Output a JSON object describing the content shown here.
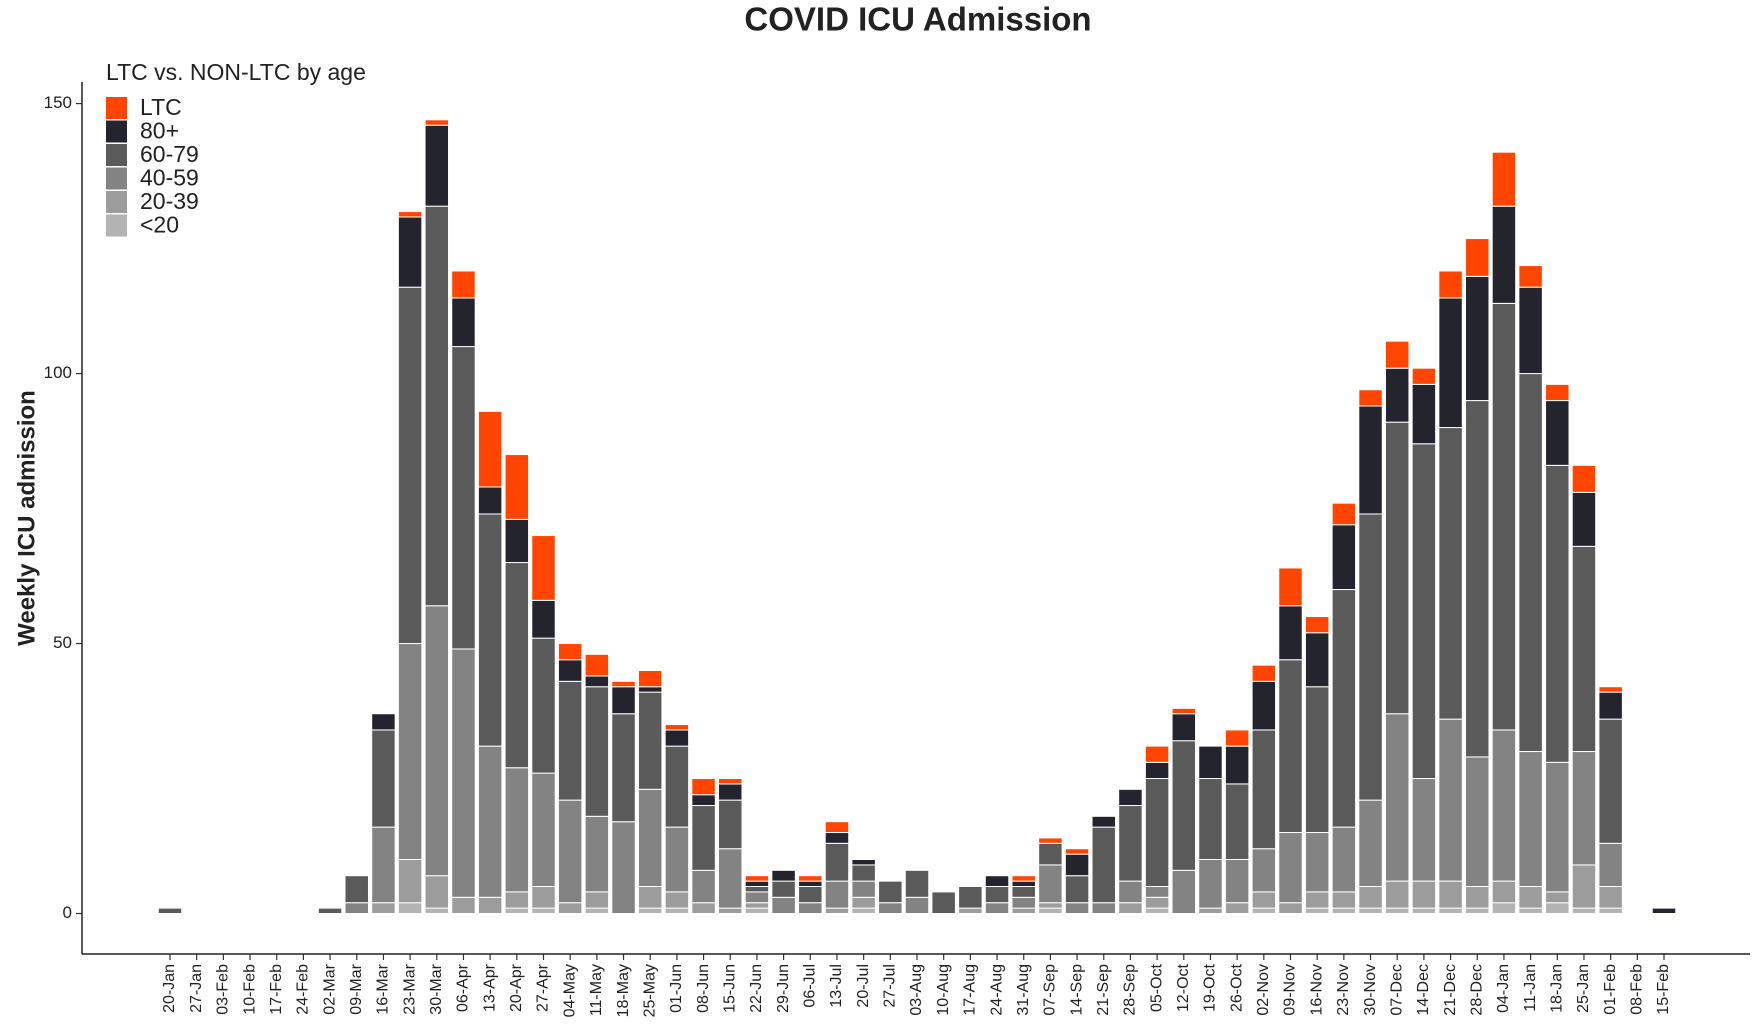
{
  "chart_data": {
    "type": "stacked_bar",
    "title": "COVID ICU Admission",
    "y_label": "Weekly ICU admission",
    "legend_title": "LTC vs. NON-LTC by age",
    "legend": "top-left",
    "grid": false,
    "ylim": [
      -7.5,
      154
    ],
    "yticks": [
      0,
      50,
      100,
      150
    ],
    "categories": [
      "20-Jan",
      "27-Jan",
      "03-Feb",
      "10-Feb",
      "17-Feb",
      "24-Feb",
      "02-Mar",
      "09-Mar",
      "16-Mar",
      "23-Mar",
      "30-Mar",
      "06-Apr",
      "13-Apr",
      "20-Apr",
      "27-Apr",
      "04-May",
      "11-May",
      "18-May",
      "25-May",
      "01-Jun",
      "08-Jun",
      "15-Jun",
      "22-Jun",
      "29-Jun",
      "06-Jul",
      "13-Jul",
      "20-Jul",
      "27-Jul",
      "03-Aug",
      "10-Aug",
      "17-Aug",
      "24-Aug",
      "31-Aug",
      "07-Sep",
      "14-Sep",
      "21-Sep",
      "28-Sep",
      "05-Oct",
      "12-Oct",
      "19-Oct",
      "26-Oct",
      "02-Nov",
      "09-Nov",
      "16-Nov",
      "23-Nov",
      "30-Nov",
      "07-Dec",
      "14-Dec",
      "21-Dec",
      "28-Dec",
      "04-Jan",
      "11-Jan",
      "18-Jan",
      "25-Jan",
      "01-Feb",
      "08-Feb",
      "15-Feb"
    ],
    "series": [
      {
        "name": "<20",
        "color": "#b3b3b3",
        "values": [
          0,
          0,
          0,
          0,
          0,
          0,
          0,
          0,
          0,
          2,
          1,
          0,
          0,
          1,
          1,
          0,
          1,
          0,
          1,
          1,
          0,
          0,
          1,
          0,
          0,
          0,
          1,
          0,
          0,
          0,
          0,
          0,
          0,
          1,
          0,
          0,
          0,
          1,
          0,
          0,
          0,
          1,
          0,
          1,
          1,
          1,
          1,
          1,
          1,
          1,
          2,
          1,
          2,
          1,
          1,
          0,
          0
        ]
      },
      {
        "name": "20-39",
        "color": "#9c9c9c",
        "values": [
          0,
          0,
          0,
          0,
          0,
          0,
          0,
          0,
          2,
          8,
          6,
          3,
          3,
          3,
          4,
          2,
          3,
          0,
          4,
          3,
          2,
          1,
          1,
          0,
          0,
          1,
          2,
          0,
          0,
          0,
          1,
          0,
          1,
          1,
          0,
          0,
          2,
          2,
          0,
          1,
          2,
          3,
          2,
          3,
          3,
          4,
          5,
          5,
          5,
          4,
          4,
          4,
          2,
          8,
          4,
          0,
          0
        ]
      },
      {
        "name": "40-59",
        "color": "#838383",
        "values": [
          0,
          0,
          0,
          0,
          0,
          0,
          0,
          2,
          14,
          40,
          50,
          46,
          28,
          23,
          21,
          19,
          14,
          17,
          18,
          12,
          6,
          11,
          2,
          3,
          2,
          5,
          3,
          2,
          3,
          0,
          0,
          2,
          2,
          7,
          2,
          2,
          4,
          2,
          8,
          9,
          8,
          8,
          13,
          11,
          12,
          16,
          31,
          19,
          30,
          24,
          28,
          25,
          24,
          21,
          8,
          0,
          0
        ]
      },
      {
        "name": "60-79",
        "color": "#5a5a5a",
        "values": [
          1,
          0,
          0,
          0,
          0,
          0,
          1,
          5,
          18,
          66,
          74,
          56,
          43,
          38,
          25,
          22,
          24,
          20,
          18,
          15,
          12,
          9,
          1,
          3,
          3,
          7,
          3,
          4,
          5,
          4,
          4,
          3,
          2,
          4,
          5,
          14,
          14,
          20,
          24,
          15,
          14,
          22,
          32,
          27,
          44,
          53,
          54,
          62,
          54,
          66,
          79,
          70,
          55,
          38,
          23,
          0,
          0
        ]
      },
      {
        "name": "80+",
        "color": "#24242e",
        "values": [
          0,
          0,
          0,
          0,
          0,
          0,
          0,
          0,
          3,
          13,
          15,
          9,
          5,
          8,
          7,
          4,
          2,
          5,
          1,
          3,
          2,
          3,
          1,
          2,
          1,
          2,
          1,
          0,
          0,
          0,
          0,
          2,
          1,
          0,
          4,
          2,
          3,
          3,
          5,
          6,
          7,
          9,
          10,
          10,
          12,
          20,
          10,
          11,
          24,
          23,
          18,
          16,
          12,
          10,
          5,
          0,
          1
        ]
      },
      {
        "name": "LTC",
        "color": "#ff4500",
        "values": [
          0,
          0,
          0,
          0,
          0,
          0,
          0,
          0,
          0,
          1,
          1,
          5,
          14,
          12,
          12,
          3,
          4,
          1,
          3,
          1,
          3,
          1,
          1,
          0,
          1,
          2,
          0,
          0,
          0,
          0,
          0,
          0,
          1,
          1,
          1,
          0,
          0,
          3,
          1,
          0,
          3,
          3,
          7,
          3,
          4,
          3,
          5,
          3,
          5,
          7,
          10,
          4,
          3,
          5,
          1,
          0,
          0
        ]
      }
    ]
  }
}
